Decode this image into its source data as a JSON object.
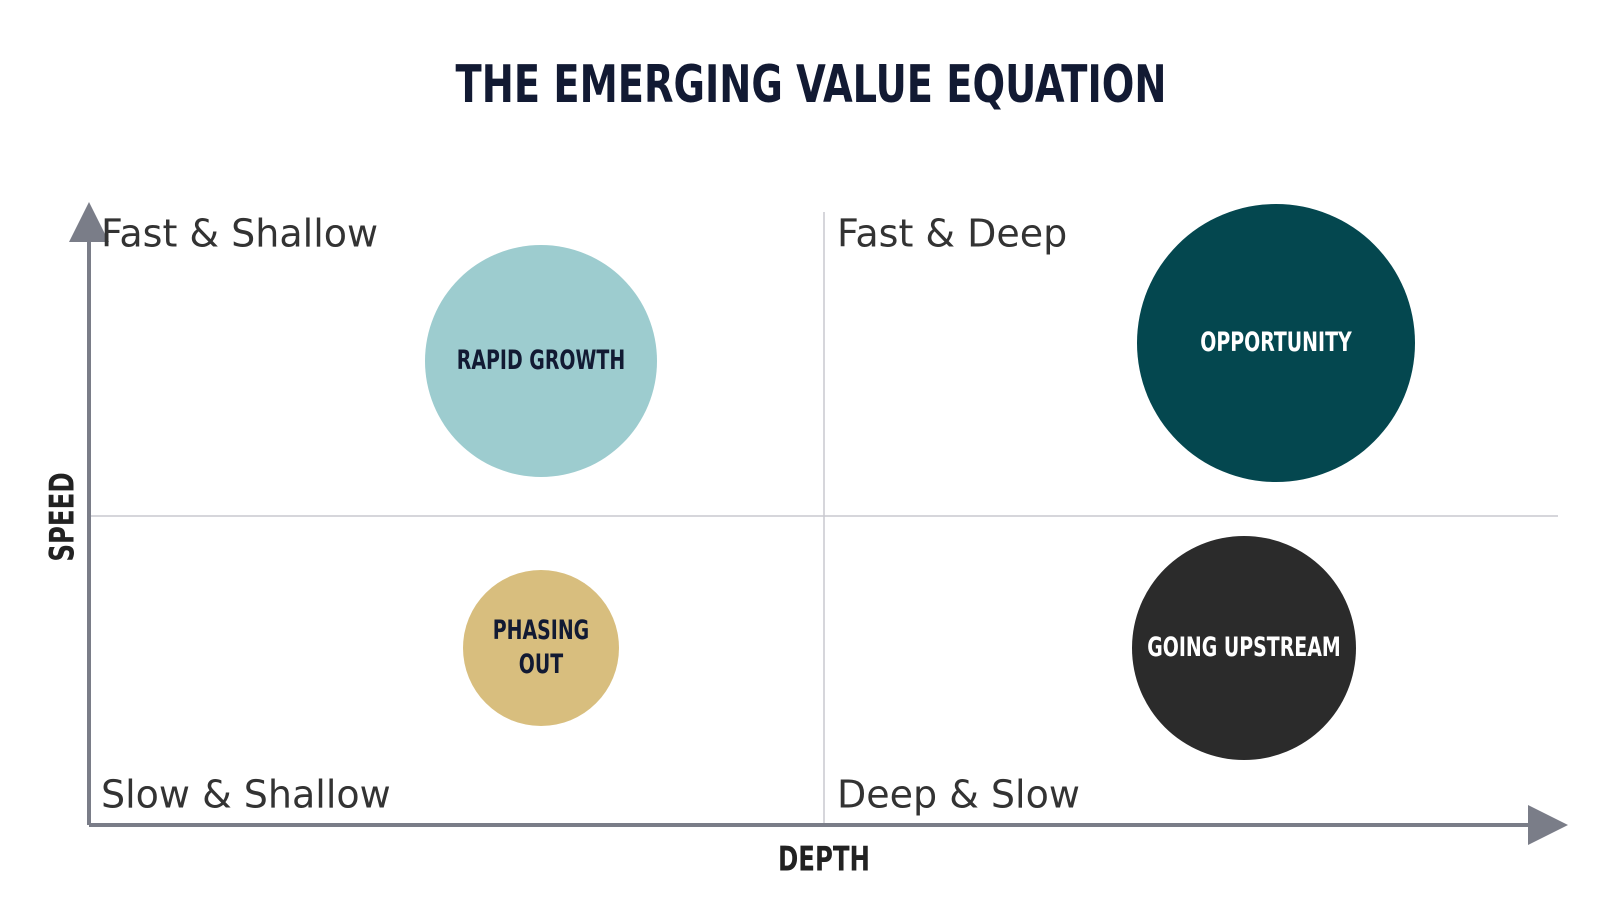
{
  "header": {
    "title": "THE EMERGING VALUE EQUATION"
  },
  "axes": {
    "y_label": "SPEED",
    "x_label": "DEPTH"
  },
  "quadrants": [
    "Fast & Shallow",
    "Fast & Deep",
    "Slow & Shallow",
    "Deep & Slow"
  ],
  "nodes": [
    {
      "lines": [
        "RAPID GROWTH"
      ]
    },
    {
      "lines": [
        "OPPORTUNITY"
      ]
    },
    {
      "lines": [
        "PHASING",
        "OUT"
      ]
    },
    {
      "lines": [
        "GOING UPSTREAM"
      ]
    }
  ]
}
